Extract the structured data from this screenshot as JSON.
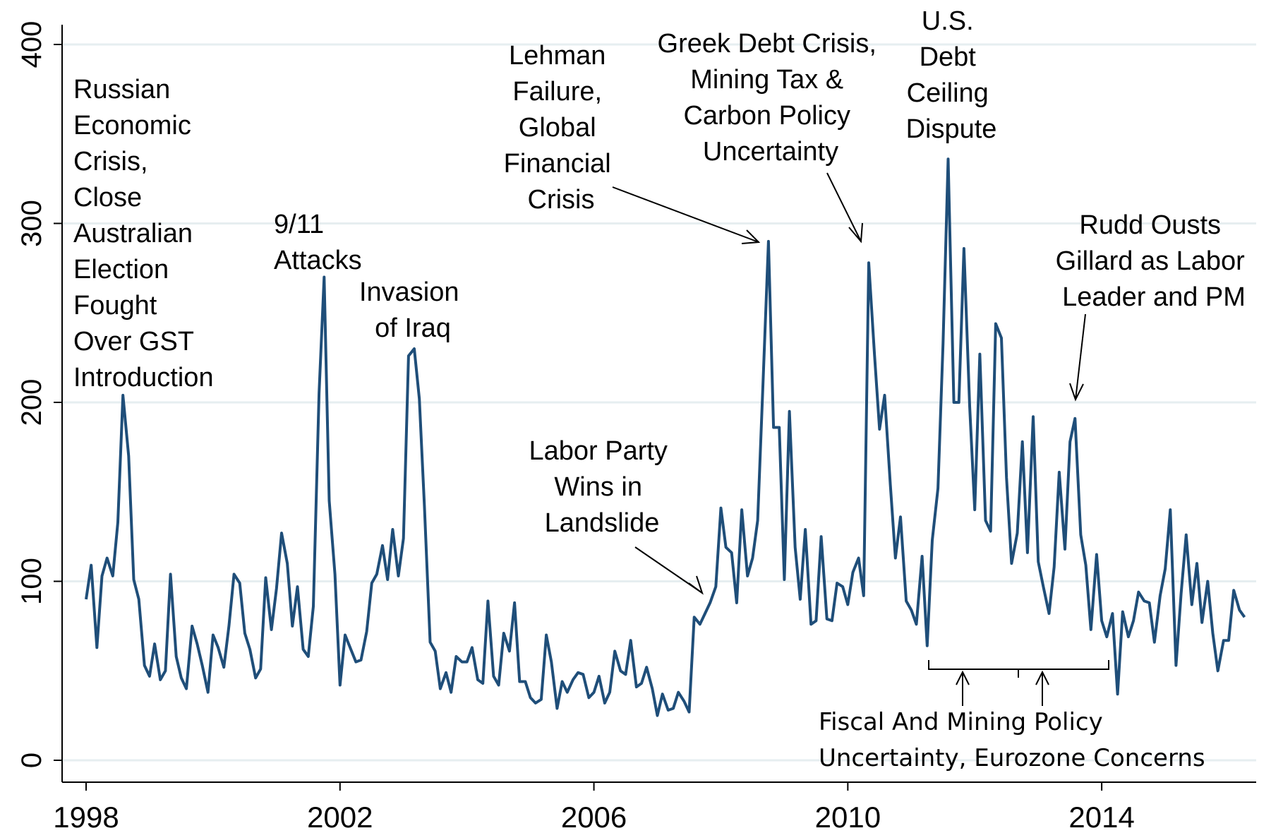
{
  "chart_data": {
    "type": "line",
    "ylim": [
      0,
      400
    ],
    "xlim": [
      1998,
      2016.5
    ],
    "grid": true,
    "y_ticks": [
      "0",
      "100",
      "200",
      "300",
      "400"
    ],
    "x_ticks": [
      "1998",
      "2002",
      "2006",
      "2010",
      "2014"
    ],
    "line_color": "#1f4e79",
    "series": [
      {
        "x": [
          1998.0,
          1998.08,
          1998.17,
          1998.25,
          1998.33,
          1998.42,
          1998.5,
          1998.58,
          1998.67,
          1998.75,
          1998.83,
          1998.92,
          1999.0,
          1999.08,
          1999.17,
          1999.25,
          1999.33,
          1999.42,
          1999.5,
          1999.58,
          1999.67,
          1999.75,
          1999.83,
          1999.92,
          2000.0,
          2000.08,
          2000.17,
          2000.25,
          2000.33,
          2000.42,
          2000.5,
          2000.58,
          2000.67,
          2000.75,
          2000.83,
          2000.92,
          2001.0,
          2001.08,
          2001.17,
          2001.25,
          2001.33,
          2001.42,
          2001.5,
          2001.58,
          2001.67,
          2001.75,
          2001.83,
          2001.92,
          2002.0,
          2002.08,
          2002.17,
          2002.25,
          2002.33,
          2002.42,
          2002.5,
          2002.58,
          2002.67,
          2002.75,
          2002.83,
          2002.92,
          2003.0,
          2003.08,
          2003.17,
          2003.25,
          2003.33,
          2003.42,
          2003.5,
          2003.58,
          2003.67,
          2003.75,
          2003.83,
          2003.92,
          2004.0,
          2004.08,
          2004.17,
          2004.25,
          2004.33,
          2004.42,
          2004.5,
          2004.58,
          2004.67,
          2004.75,
          2004.83,
          2004.92,
          2005.0,
          2005.08,
          2005.17,
          2005.25,
          2005.33,
          2005.42,
          2005.5,
          2005.58,
          2005.67,
          2005.75,
          2005.83,
          2005.92,
          2006.0,
          2006.08,
          2006.17,
          2006.25,
          2006.33,
          2006.42,
          2006.5,
          2006.58,
          2006.67,
          2006.75,
          2006.83,
          2006.92,
          2007.0,
          2007.08,
          2007.17,
          2007.25,
          2007.33,
          2007.42,
          2007.5,
          2007.58,
          2007.67,
          2007.75,
          2007.83,
          2007.92,
          2008.0,
          2008.08,
          2008.17,
          2008.25,
          2008.33,
          2008.42,
          2008.5,
          2008.58,
          2008.67,
          2008.75,
          2008.83,
          2008.92,
          2009.0,
          2009.08,
          2009.17,
          2009.25,
          2009.33,
          2009.42,
          2009.5,
          2009.58,
          2009.67,
          2009.75,
          2009.83,
          2009.92,
          2010.0,
          2010.08,
          2010.17,
          2010.25,
          2010.33,
          2010.42,
          2010.5,
          2010.58,
          2010.67,
          2010.75,
          2010.83,
          2010.92,
          2011.0,
          2011.08,
          2011.17,
          2011.25,
          2011.33,
          2011.42,
          2011.5,
          2011.58,
          2011.67,
          2011.75,
          2011.83,
          2011.92,
          2012.0,
          2012.08,
          2012.17,
          2012.25,
          2012.33,
          2012.42,
          2012.5,
          2012.58,
          2012.67,
          2012.75,
          2012.83,
          2012.92,
          2013.0,
          2013.08,
          2013.17,
          2013.25,
          2013.33,
          2013.42,
          2013.5,
          2013.58,
          2013.67,
          2013.75,
          2013.83,
          2013.92,
          2014.0,
          2014.08,
          2014.17,
          2014.25,
          2014.33,
          2014.42,
          2014.5,
          2014.58,
          2014.67,
          2014.75,
          2014.83,
          2014.92,
          2015.0,
          2015.08,
          2015.17,
          2015.25,
          2015.33,
          2015.42,
          2015.5,
          2015.58,
          2015.67,
          2015.75,
          2015.83,
          2015.92,
          2016.0,
          2016.08,
          2016.17,
          2016.25
        ],
        "y": [
          90,
          109,
          63,
          103,
          113,
          103,
          133,
          204,
          170,
          101,
          90,
          53,
          47,
          65,
          45,
          50,
          104,
          58,
          46,
          40,
          75,
          65,
          53,
          38,
          70,
          63,
          52,
          75,
          104,
          99,
          71,
          62,
          46,
          51,
          102,
          73,
          96,
          127,
          110,
          75,
          97,
          62,
          58,
          86,
          205,
          270,
          145,
          104,
          42,
          70,
          62,
          55,
          56,
          72,
          99,
          104,
          120,
          101,
          129,
          103,
          124,
          226,
          230,
          202,
          142,
          66,
          61,
          40,
          49,
          38,
          58,
          55,
          55,
          63,
          45,
          43,
          89,
          47,
          42,
          71,
          61,
          88,
          44,
          44,
          35,
          32,
          34,
          70,
          55,
          29,
          44,
          38,
          45,
          49,
          48,
          35,
          38,
          47,
          32,
          38,
          61,
          50,
          48,
          67,
          41,
          43,
          52,
          40,
          25,
          37,
          28,
          29,
          38,
          33,
          27,
          80,
          76,
          82,
          88,
          97,
          141,
          119,
          116,
          88,
          140,
          103,
          113,
          134,
          216,
          290,
          186,
          186,
          101,
          195,
          119,
          90,
          129,
          76,
          78,
          125,
          79,
          78,
          99,
          97,
          87,
          105,
          113,
          92,
          278,
          227,
          185,
          204,
          154,
          113,
          136,
          89,
          84,
          76,
          114,
          64,
          123,
          152,
          233,
          336,
          200,
          200,
          286,
          198,
          140,
          227,
          134,
          128,
          244,
          236,
          158,
          110,
          127,
          178,
          116,
          192,
          111,
          97,
          82,
          108,
          161,
          118,
          178,
          191,
          126,
          109,
          73,
          115,
          78,
          69,
          82,
          37,
          83,
          69,
          78,
          94,
          89,
          88,
          66,
          92,
          107,
          140,
          53,
          93,
          126,
          87,
          110,
          77,
          100,
          71,
          50,
          67,
          67,
          95,
          84,
          80
        ]
      }
    ]
  },
  "annotations": {
    "russian": [
      "Russian",
      "Economic",
      "Crisis,",
      "Close",
      "Australian",
      "Election",
      "Fought",
      "Over GST",
      "Introduction"
    ],
    "sept11": [
      "9/11",
      "Attacks"
    ],
    "iraq": [
      "Invasion",
      "of Iraq"
    ],
    "lehman": [
      "Lehman",
      "Failure,",
      "Global",
      "Financial",
      "Crisis"
    ],
    "greek": [
      "Greek Debt Crisis,",
      "Mining Tax &",
      "Carbon Policy",
      "Uncertainty"
    ],
    "usdebt": [
      "U.S.",
      "Debt",
      "Ceiling",
      "Dispute"
    ],
    "labor": [
      "Labor Party",
      "Wins in",
      "Landslide"
    ],
    "rudd": [
      "Rudd Ousts",
      "Gillard as Labor",
      "Leader and PM"
    ],
    "fiscal": [
      "Fiscal And Mining Policy",
      "Uncertainty, Eurozone Concerns"
    ]
  }
}
